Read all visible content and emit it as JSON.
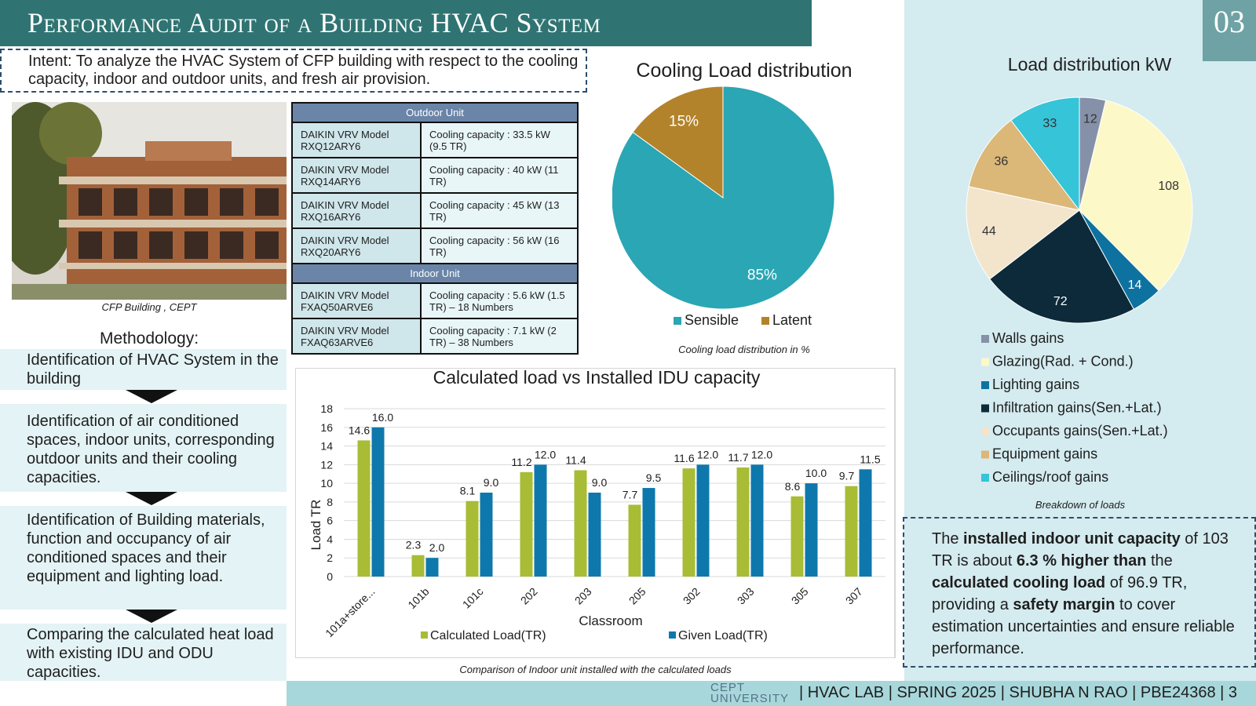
{
  "header": {
    "title": "Performance Audit of a Building HVAC System",
    "slide_number": "03"
  },
  "intent": {
    "text": "Intent: To analyze the HVAC System of CFP building with respect to the cooling capacity, indoor and outdoor units, and fresh air provision."
  },
  "photo": {
    "caption": "CFP Building , CEPT"
  },
  "methodology": {
    "title": "Methodology:",
    "steps": [
      "Identification of HVAC System in the building",
      "Identification of air conditioned spaces, indoor units, corresponding outdoor units and their cooling capacities.",
      "Identification of Building materials, function and occupancy of air conditioned spaces and their equipment and lighting load.",
      "Comparing the calculated heat load with existing IDU and ODU capacities."
    ]
  },
  "spec_table": {
    "outdoor_header": "Outdoor Unit",
    "outdoor_rows": [
      {
        "model": "DAIKIN VRV Model RXQ12ARY6",
        "capacity": "Cooling capacity : 33.5 kW (9.5 TR)"
      },
      {
        "model": "DAIKIN VRV Model RXQ14ARY6",
        "capacity": "Cooling capacity : 40 kW (11 TR)"
      },
      {
        "model": "DAIKIN VRV Model RXQ16ARY6",
        "capacity": "Cooling capacity : 45 kW (13 TR)"
      },
      {
        "model": "DAIKIN VRV Model RXQ20ARY6",
        "capacity": "Cooling capacity : 56 kW (16 TR)"
      }
    ],
    "indoor_header": "Indoor Unit",
    "indoor_rows": [
      {
        "model": "DAIKIN VRV Model FXAQ50ARVE6",
        "capacity": "Cooling capacity : 5.6 kW (1.5 TR) – 18 Numbers"
      },
      {
        "model": "DAIKIN VRV Model FXAQ63ARVE6",
        "capacity": "Cooling capacity : 7.1 kW (2 TR) – 38 Numbers"
      }
    ]
  },
  "summary": {
    "parts": [
      {
        "t": "The ",
        "b": false
      },
      {
        "t": "installed indoor unit capacity",
        "b": true
      },
      {
        "t": " of 103 TR is about ",
        "b": false
      },
      {
        "t": "6.3 % higher than",
        "b": true
      },
      {
        "t": " the ",
        "b": false
      },
      {
        "t": "calculated cooling load",
        "b": true
      },
      {
        "t": " of 96.9 TR, providing a ",
        "b": false
      },
      {
        "t": "safety margin",
        "b": true
      },
      {
        "t": " to cover estimation uncertainties and ensure reliable performance.",
        "b": false
      }
    ]
  },
  "footer": {
    "logo_line1": "CEPT",
    "logo_line2": "UNIVERSITY",
    "text": "| HVAC LAB | SPRING 2025 | SHUBHA N RAO | PBE24368 |   3"
  },
  "colors": {
    "title_bar": "#2f7472",
    "panel": "#d4ebef",
    "sensible": "#2aa6b4",
    "latent": "#b3832b",
    "calculated": "#a8bc36",
    "given": "#0e78ac"
  },
  "chart_data": [
    {
      "type": "pie",
      "title": "Cooling Load distribution",
      "caption": "Cooling load distribution in %",
      "legend_position": "bottom",
      "slices": [
        {
          "name": "Sensible",
          "value": 85,
          "label": "85%",
          "color": "#2aa6b4"
        },
        {
          "name": "Latent",
          "value": 15,
          "label": "15%",
          "color": "#b3832b"
        }
      ]
    },
    {
      "type": "pie",
      "title": "Load distribution kW",
      "caption": "Breakdown of loads",
      "legend_position": "bottom",
      "slices": [
        {
          "name": "Walls gains",
          "value": 12,
          "label": "12",
          "color": "#8491a8"
        },
        {
          "name": "Glazing(Rad. + Cond.)",
          "value": 108,
          "label": "108",
          "color": "#fdf8c8"
        },
        {
          "name": "Lighting gains",
          "value": 14,
          "label": "14",
          "color": "#0e72a0"
        },
        {
          "name": "Infiltration gains(Sen.+Lat.)",
          "value": 72,
          "label": "72",
          "color": "#0c2a3a"
        },
        {
          "name": "Occupants gains(Sen.+Lat.)",
          "value": 44,
          "label": "44",
          "color": "#f2e5cc"
        },
        {
          "name": "Equipment gains",
          "value": 36,
          "label": "36",
          "color": "#dbb778"
        },
        {
          "name": "Ceilings/roof gains",
          "value": 33,
          "label": "33",
          "color": "#35c4d8"
        }
      ]
    },
    {
      "type": "bar",
      "title": "Calculated load vs Installed IDU capacity",
      "caption": "Comparison of Indoor unit installed with the calculated loads",
      "xlabel": "Classroom",
      "ylabel": "Load TR",
      "ylim": [
        0,
        18
      ],
      "yticks": [
        0,
        2,
        4,
        6,
        8,
        10,
        12,
        14,
        16,
        18
      ],
      "grid": true,
      "legend_position": "bottom",
      "categories": [
        "101a+store...",
        "101b",
        "101c",
        "202",
        "203",
        "205",
        "302",
        "303",
        "305",
        "307"
      ],
      "series": [
        {
          "name": "Calculated Load(TR)",
          "color": "#a8bc36",
          "values": [
            14.6,
            2.3,
            8.1,
            11.2,
            11.4,
            7.7,
            11.6,
            11.7,
            8.6,
            9.7
          ]
        },
        {
          "name": "Given Load(TR)",
          "color": "#0e78ac",
          "values": [
            16.0,
            2.0,
            9.0,
            12.0,
            9.0,
            9.5,
            12.0,
            12.0,
            10.0,
            11.5
          ]
        }
      ]
    }
  ]
}
